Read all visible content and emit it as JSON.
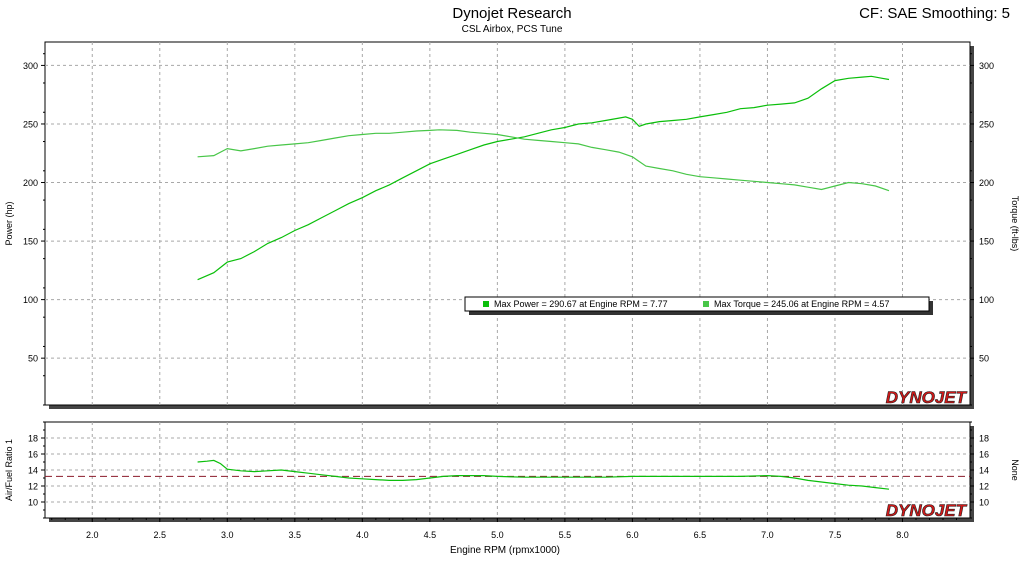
{
  "header": {
    "title": "Dynojet Research",
    "subtitle": "CSL Airbox, PCS Tune",
    "cf_text": "CF: SAE Smoothing: 5"
  },
  "brand": {
    "logo_text": "DYNOJET"
  },
  "colors": {
    "power": "#0bbf0b",
    "torque": "#48c648",
    "afr": "#0bbf0b",
    "afr_target": "#8b1a2a",
    "grid": "#a8a8a8",
    "logo": "#d01818"
  },
  "chart_data": [
    {
      "type": "line",
      "xlabel": "",
      "ylabel_left": "Power (hp)",
      "ylabel_right": "Torque (ft-lbs)",
      "xlim": [
        1.65,
        8.5
      ],
      "ylim": [
        10,
        320
      ],
      "y_ticks": [
        50,
        100,
        150,
        200,
        250,
        300
      ],
      "legend": [
        "Max Power = 290.67 at Engine RPM = 7.77",
        "Max Torque = 245.06 at Engine RPM = 4.57"
      ],
      "series": [
        {
          "name": "Power",
          "x": [
            2.78,
            2.9,
            3.0,
            3.1,
            3.2,
            3.3,
            3.4,
            3.5,
            3.6,
            3.7,
            3.8,
            3.9,
            4.0,
            4.1,
            4.2,
            4.3,
            4.4,
            4.5,
            4.6,
            4.7,
            4.8,
            4.9,
            5.0,
            5.1,
            5.2,
            5.3,
            5.4,
            5.5,
            5.6,
            5.7,
            5.8,
            5.9,
            5.95,
            6.0,
            6.05,
            6.1,
            6.2,
            6.3,
            6.4,
            6.5,
            6.6,
            6.7,
            6.8,
            6.9,
            7.0,
            7.1,
            7.2,
            7.3,
            7.4,
            7.5,
            7.6,
            7.7,
            7.77,
            7.85,
            7.9
          ],
          "y": [
            117,
            123,
            132,
            135,
            141,
            148,
            153,
            159,
            164,
            170,
            176,
            182,
            187,
            193,
            198,
            204,
            210,
            216,
            220,
            224,
            228,
            232,
            235,
            237,
            239,
            242,
            245,
            247,
            250,
            251,
            253,
            255,
            256,
            254,
            248,
            250,
            252,
            253,
            254,
            256,
            258,
            260,
            263,
            264,
            266,
            267,
            268,
            272,
            280,
            287,
            289,
            290,
            290.67,
            289,
            288
          ]
        },
        {
          "name": "Torque",
          "x": [
            2.78,
            2.9,
            3.0,
            3.1,
            3.2,
            3.3,
            3.4,
            3.5,
            3.6,
            3.7,
            3.8,
            3.9,
            4.0,
            4.1,
            4.2,
            4.3,
            4.4,
            4.5,
            4.57,
            4.7,
            4.8,
            4.9,
            5.0,
            5.1,
            5.2,
            5.3,
            5.4,
            5.5,
            5.6,
            5.7,
            5.8,
            5.9,
            6.0,
            6.1,
            6.2,
            6.3,
            6.4,
            6.5,
            6.6,
            6.7,
            6.8,
            6.9,
            7.0,
            7.1,
            7.2,
            7.3,
            7.4,
            7.5,
            7.6,
            7.7,
            7.8,
            7.9
          ],
          "y": [
            222,
            223,
            229,
            227,
            229,
            231,
            232,
            233,
            234,
            236,
            238,
            240,
            241,
            242,
            242,
            243,
            244,
            244.5,
            245.06,
            244.5,
            243,
            242,
            241,
            239,
            237,
            236,
            235,
            234,
            233,
            230,
            228,
            226,
            222,
            214,
            212,
            210,
            207,
            205,
            204,
            203,
            202,
            201,
            200,
            199,
            198,
            196,
            194,
            197,
            200,
            199,
            197,
            193
          ]
        }
      ]
    },
    {
      "type": "line",
      "xlabel": "Engine RPM (rpmx1000)",
      "ylabel_left": "Air/Fuel Ratio 1",
      "ylabel_right": "None",
      "xlim": [
        1.65,
        8.5
      ],
      "ylim": [
        8,
        20
      ],
      "y_ticks": [
        10,
        12,
        14,
        16,
        18
      ],
      "x_ticks": [
        2.0,
        2.5,
        3.0,
        3.5,
        4.0,
        4.5,
        5.0,
        5.5,
        6.0,
        6.5,
        7.0,
        7.5,
        8.0
      ],
      "target": 13.2,
      "series": [
        {
          "name": "Air/Fuel Ratio 1",
          "x": [
            2.78,
            2.85,
            2.9,
            2.95,
            3.0,
            3.1,
            3.2,
            3.3,
            3.4,
            3.5,
            3.6,
            3.7,
            3.8,
            3.9,
            4.0,
            4.1,
            4.2,
            4.3,
            4.4,
            4.5,
            4.6,
            4.7,
            4.8,
            4.9,
            5.0,
            5.2,
            5.4,
            5.6,
            5.8,
            6.0,
            6.2,
            6.4,
            6.6,
            6.8,
            7.0,
            7.1,
            7.2,
            7.3,
            7.4,
            7.5,
            7.6,
            7.7,
            7.8,
            7.9
          ],
          "y": [
            15.0,
            15.1,
            15.2,
            14.8,
            14.1,
            13.9,
            13.8,
            13.9,
            14.0,
            13.8,
            13.6,
            13.4,
            13.2,
            13.0,
            12.9,
            12.8,
            12.7,
            12.7,
            12.8,
            13.0,
            13.2,
            13.3,
            13.3,
            13.3,
            13.2,
            13.1,
            13.1,
            13.1,
            13.1,
            13.2,
            13.2,
            13.2,
            13.2,
            13.2,
            13.3,
            13.2,
            13.0,
            12.7,
            12.5,
            12.3,
            12.1,
            12.0,
            11.8,
            11.6
          ]
        }
      ]
    }
  ]
}
